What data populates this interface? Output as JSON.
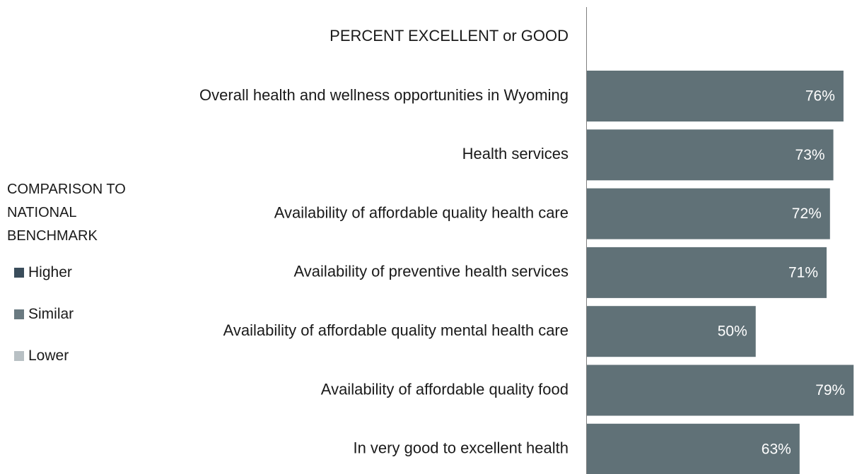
{
  "chart_data": {
    "type": "barh",
    "title": "PERCENT EXCELLENT or GOOD",
    "categories": [
      "Overall health and wellness opportunities in Wyoming",
      "Health services",
      "Availability of affordable quality health care",
      "Availability of preventive health services",
      "Availability of affordable quality mental health care",
      "Availability of affordable quality food",
      "In very good to excellent health"
    ],
    "values": [
      76,
      73,
      72,
      71,
      50,
      79,
      63
    ],
    "value_labels": [
      "76%",
      "73%",
      "72%",
      "71%",
      "50%",
      "79%",
      "63%"
    ],
    "color": "#607177",
    "xlim": [
      0,
      80
    ],
    "legend": {
      "title": "COMPARISON TO NATIONAL BENCHMARK",
      "items": [
        {
          "name": "Higher",
          "color": "#3a4d5b"
        },
        {
          "name": "Similar",
          "color": "#6a7a81"
        },
        {
          "name": "Lower",
          "color": "#b8c0c4"
        }
      ]
    }
  }
}
